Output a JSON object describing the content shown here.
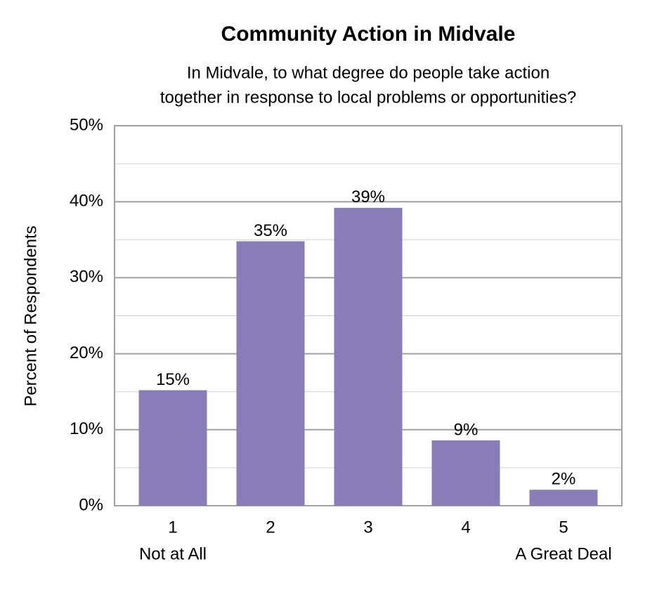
{
  "chart_data": {
    "type": "bar",
    "title": "Community Action in Midvale",
    "subtitle": [
      "In Midvale, to what degree do people take action",
      "together in response to local problems or opportunities?"
    ],
    "y_label": "Percent of Respondents",
    "categories": [
      "1",
      "2",
      "3",
      "4",
      "5"
    ],
    "category_sublabels": [
      "Not at All",
      null,
      null,
      null,
      "A Great Deal"
    ],
    "values": [
      15.2,
      34.8,
      39.2,
      8.6,
      2.1
    ],
    "value_labels": [
      "15%",
      "35%",
      "39%",
      "9%",
      "2%"
    ],
    "color": "#8a7cb6",
    "ylim": [
      0,
      50
    ],
    "yticks": [
      {
        "value": 0,
        "label": "0%"
      },
      {
        "value": 10,
        "label": "10%"
      },
      {
        "value": 20,
        "label": "20%"
      },
      {
        "value": 30,
        "label": "30%"
      },
      {
        "value": 40,
        "label": "40%"
      },
      {
        "value": 50,
        "label": "50%"
      }
    ],
    "minor_yticks": [
      5,
      15,
      25,
      35,
      45
    ],
    "grid": true
  }
}
